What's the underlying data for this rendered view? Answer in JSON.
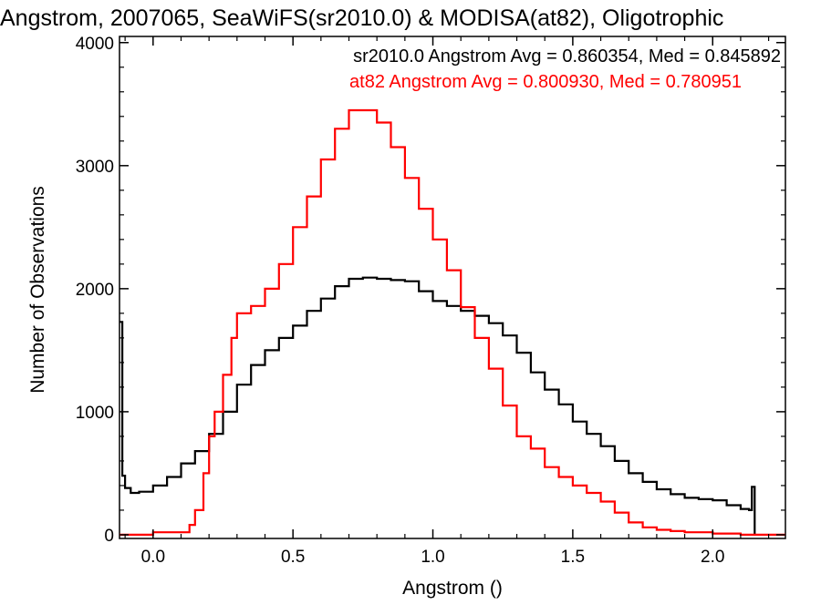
{
  "chart_data": {
    "type": "line",
    "title": "Angstrom, 2007065, SeaWiFS(sr2010.0) & MODISA(at82), Oligotrophic",
    "xlabel": "Angstrom ()",
    "ylabel": "Number of Observations",
    "xlim": [
      -0.12,
      2.26
    ],
    "ylim": [
      -30,
      4050
    ],
    "xticks": [
      0.0,
      0.5,
      1.0,
      1.5,
      2.0
    ],
    "xtick_labels": [
      "0.0",
      "0.5",
      "1.0",
      "1.5",
      "2.0"
    ],
    "yticks": [
      0,
      1000,
      2000,
      3000,
      4000
    ],
    "ytick_labels": [
      "0",
      "1000",
      "2000",
      "3000",
      "4000"
    ],
    "grid": false,
    "legend_position": "top-right",
    "series": [
      {
        "name": "sr2010.0 Angstrom Avg = 0.860354, Med = 0.845892",
        "color": "#000000",
        "x": [
          -0.12,
          -0.11,
          -0.1,
          -0.08,
          -0.05,
          0.0,
          0.05,
          0.1,
          0.15,
          0.2,
          0.25,
          0.3,
          0.35,
          0.4,
          0.45,
          0.5,
          0.55,
          0.6,
          0.65,
          0.7,
          0.75,
          0.8,
          0.85,
          0.9,
          0.95,
          1.0,
          1.05,
          1.1,
          1.15,
          1.2,
          1.25,
          1.3,
          1.35,
          1.4,
          1.45,
          1.5,
          1.55,
          1.6,
          1.65,
          1.7,
          1.75,
          1.8,
          1.85,
          1.9,
          1.95,
          2.0,
          2.05,
          2.1,
          2.13,
          2.14,
          2.15
        ],
        "values": [
          1730,
          480,
          380,
          340,
          350,
          400,
          470,
          580,
          680,
          820,
          1000,
          1220,
          1380,
          1500,
          1600,
          1700,
          1820,
          1920,
          2020,
          2080,
          2090,
          2080,
          2070,
          2060,
          1980,
          1900,
          1860,
          1820,
          1780,
          1720,
          1620,
          1480,
          1320,
          1180,
          1060,
          920,
          820,
          720,
          600,
          500,
          430,
          370,
          330,
          300,
          290,
          280,
          240,
          210,
          200,
          390,
          0
        ]
      },
      {
        "name": "at82 Angstrom Avg = 0.800930, Med = 0.780951",
        "color": "#ff0000",
        "x": [
          -0.12,
          -0.1,
          -0.05,
          0.0,
          0.05,
          0.1,
          0.13,
          0.15,
          0.18,
          0.2,
          0.22,
          0.25,
          0.28,
          0.3,
          0.35,
          0.4,
          0.45,
          0.5,
          0.55,
          0.6,
          0.65,
          0.7,
          0.75,
          0.8,
          0.85,
          0.9,
          0.95,
          1.0,
          1.05,
          1.1,
          1.15,
          1.2,
          1.25,
          1.3,
          1.35,
          1.4,
          1.45,
          1.5,
          1.55,
          1.6,
          1.65,
          1.7,
          1.75,
          1.8,
          1.85,
          1.9,
          2.0,
          2.1,
          2.26
        ],
        "values": [
          0,
          0,
          0,
          20,
          20,
          20,
          80,
          200,
          500,
          800,
          1000,
          1300,
          1600,
          1800,
          1860,
          2000,
          2200,
          2500,
          2750,
          3050,
          3300,
          3450,
          3450,
          3350,
          3150,
          2900,
          2650,
          2400,
          2150,
          1850,
          1600,
          1350,
          1050,
          800,
          700,
          550,
          470,
          400,
          340,
          270,
          180,
          100,
          60,
          40,
          30,
          20,
          10,
          0,
          0
        ]
      }
    ]
  }
}
